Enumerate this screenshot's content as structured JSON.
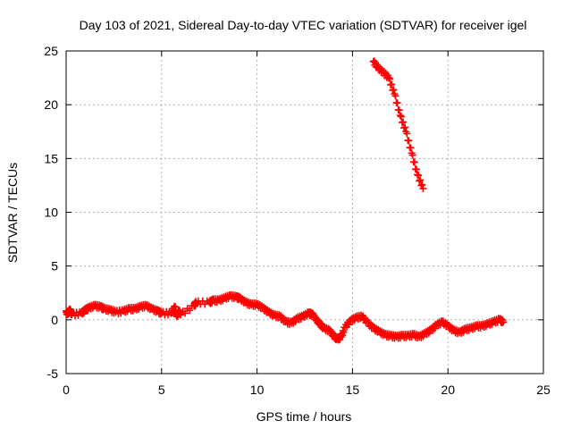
{
  "chart_data": {
    "type": "scatter",
    "title": "Day 103 of 2021, Sidereal Day-to-day VTEC variation (SDTVAR) for receiver igel",
    "xlabel": "GPS time / hours",
    "ylabel": "SDTVAR / TECUs",
    "xlim": [
      0,
      25
    ],
    "ylim": [
      -5,
      25
    ],
    "xticks": [
      0,
      5,
      10,
      15,
      20,
      25
    ],
    "yticks": [
      -5,
      0,
      5,
      10,
      15,
      20,
      25
    ],
    "grid": true,
    "marker": "+",
    "color": "#ff0000",
    "series": [
      {
        "name": "SDTVAR",
        "x": [
          0.0,
          0.1,
          0.2,
          0.3,
          0.8,
          1.0,
          1.2,
          1.5,
          1.8,
          2.0,
          2.3,
          2.6,
          3.0,
          3.3,
          3.6,
          3.9,
          4.2,
          4.5,
          4.8,
          5.0,
          5.5,
          5.7,
          5.8,
          5.9,
          6.0,
          6.7,
          6.8,
          7.5,
          7.7,
          8.0,
          8.3,
          8.6,
          8.9,
          9.1,
          9.4,
          9.7,
          10.0,
          10.3,
          10.6,
          10.9,
          11.2,
          11.5,
          11.8,
          12.1,
          12.4,
          12.7,
          12.9,
          13.1,
          13.3,
          13.5,
          13.8,
          14.0,
          14.2,
          14.4,
          14.6,
          14.9,
          15.2,
          15.5,
          15.8,
          16.1,
          16.4,
          16.7,
          17.0,
          17.3,
          17.6,
          17.9,
          18.2,
          18.5,
          18.8,
          19.1,
          19.4,
          19.7,
          20.0,
          20.3,
          20.6,
          20.9,
          21.2,
          21.5,
          21.8,
          22.1,
          22.4,
          22.7,
          22.9,
          16.1,
          16.3,
          16.6,
          16.9,
          17.2,
          17.5,
          17.8,
          18.1,
          18.4,
          18.7
        ],
        "y": [
          0.7,
          0.6,
          0.9,
          0.5,
          0.6,
          0.9,
          1.1,
          1.3,
          1.2,
          1.0,
          0.9,
          0.7,
          0.8,
          1.0,
          1.0,
          1.2,
          1.3,
          1.0,
          0.8,
          0.6,
          0.6,
          1.2,
          0.3,
          0.8,
          0.5,
          1.3,
          1.6,
          1.6,
          1.8,
          1.8,
          2.0,
          2.2,
          2.1,
          2.0,
          1.6,
          1.4,
          1.4,
          1.1,
          0.7,
          0.4,
          0.3,
          -0.2,
          -0.3,
          0.1,
          0.3,
          0.6,
          0.5,
          0.0,
          -0.4,
          -0.8,
          -1.0,
          -1.5,
          -1.8,
          -1.6,
          -0.7,
          -0.1,
          0.2,
          0.3,
          -0.3,
          -0.8,
          -1.1,
          -1.4,
          -1.5,
          -1.6,
          -1.5,
          -1.5,
          -1.4,
          -1.6,
          -1.3,
          -1.0,
          -0.5,
          -0.2,
          -0.6,
          -1.0,
          -1.2,
          -0.9,
          -0.8,
          -0.6,
          -0.6,
          -0.4,
          -0.2,
          0.0,
          -0.2,
          24.0,
          23.5,
          23.0,
          22.5,
          21.0,
          19.0,
          17.5,
          15.5,
          13.5,
          12.2
        ]
      }
    ]
  }
}
